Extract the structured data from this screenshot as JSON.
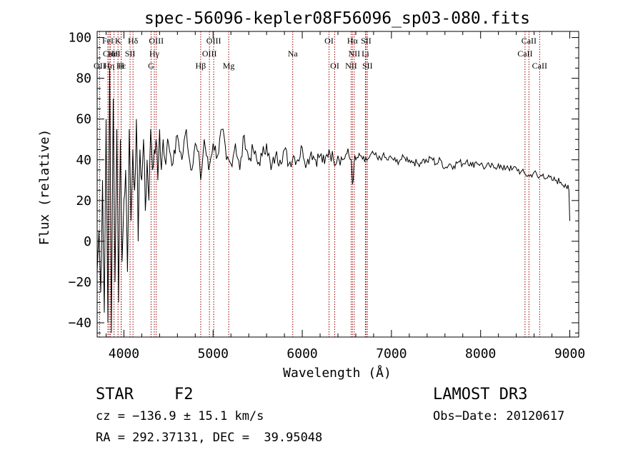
{
  "chart_data": {
    "type": "line",
    "title": "spec-56096-kepler08F56096_sp03-080.fits",
    "xlabel": "Wavelength (Å)",
    "ylabel": "Flux (relative)",
    "xlim": [
      3700,
      9100
    ],
    "ylim": [
      -47,
      103
    ],
    "x_ticks": [
      4000,
      5000,
      6000,
      7000,
      8000,
      9000
    ],
    "x_tick_labels": [
      "4000",
      "5000",
      "6000",
      "7000",
      "8000",
      "9000"
    ],
    "y_ticks": [
      -40,
      -20,
      0,
      20,
      40,
      60,
      80,
      100
    ],
    "y_tick_labels": [
      "−40",
      "−20",
      "0",
      "20",
      "40",
      "60",
      "80",
      "100"
    ],
    "series": [
      {
        "name": "flux",
        "x": [
          3700,
          3720,
          3740,
          3760,
          3780,
          3800,
          3820,
          3840,
          3860,
          3880,
          3900,
          3920,
          3940,
          3960,
          3980,
          4000,
          4020,
          4040,
          4060,
          4080,
          4100,
          4120,
          4140,
          4160,
          4180,
          4200,
          4220,
          4240,
          4260,
          4280,
          4300,
          4320,
          4340,
          4360,
          4380,
          4400,
          4420,
          4440,
          4460,
          4480,
          4500,
          4550,
          4600,
          4650,
          4700,
          4750,
          4800,
          4850,
          4861,
          4900,
          4950,
          5000,
          5050,
          5100,
          5150,
          5200,
          5250,
          5300,
          5350,
          5400,
          5450,
          5500,
          5550,
          5600,
          5650,
          5700,
          5750,
          5800,
          5850,
          5900,
          5950,
          6000,
          6050,
          6100,
          6150,
          6200,
          6250,
          6300,
          6350,
          6400,
          6450,
          6500,
          6550,
          6563,
          6580,
          6600,
          6650,
          6700,
          6750,
          6800,
          6850,
          6900,
          6950,
          7000,
          7050,
          7100,
          7150,
          7200,
          7250,
          7300,
          7350,
          7400,
          7450,
          7500,
          7550,
          7600,
          7650,
          7700,
          7750,
          7800,
          7850,
          7900,
          7950,
          8000,
          8050,
          8100,
          8150,
          8200,
          8250,
          8300,
          8350,
          8400,
          8450,
          8500,
          8550,
          8600,
          8650,
          8700,
          8750,
          8800,
          8850,
          8900,
          8950,
          8990,
          9000
        ],
        "values": [
          -15,
          5,
          -25,
          30,
          -35,
          60,
          -40,
          85,
          -45,
          70,
          -20,
          55,
          -30,
          50,
          -10,
          20,
          35,
          -15,
          55,
          10,
          45,
          25,
          60,
          0,
          45,
          30,
          50,
          15,
          40,
          20,
          55,
          35,
          45,
          50,
          30,
          55,
          35,
          50,
          40,
          45,
          48,
          38,
          52,
          40,
          55,
          35,
          48,
          38,
          30,
          50,
          35,
          48,
          42,
          55,
          40,
          38,
          48,
          35,
          52,
          40,
          45,
          38,
          42,
          48,
          35,
          42,
          40,
          45,
          38,
          42,
          40,
          46,
          38,
          44,
          40,
          42,
          38,
          45,
          40,
          42,
          40,
          43,
          40,
          28,
          38,
          40,
          42,
          39,
          41,
          43,
          40,
          42,
          40,
          41,
          39,
          40,
          41,
          40,
          39,
          38,
          40,
          39,
          41,
          38,
          40,
          36,
          38,
          37,
          39,
          38,
          40,
          37,
          39,
          38,
          36,
          37,
          36,
          38,
          35,
          37,
          35,
          36,
          34,
          33,
          32,
          34,
          31,
          33,
          31,
          30,
          30,
          29,
          28,
          25,
          10
        ]
      }
    ],
    "line_color": "#000000",
    "marker_color": "#990000",
    "line_markers": [
      {
        "label": "FeI",
        "wavelength": 3820,
        "row": 0
      },
      {
        "label": "OII",
        "wavelength": 3727,
        "row": 2
      },
      {
        "label": "CaII",
        "wavelength": 3849,
        "row": 1
      },
      {
        "label": "K",
        "wavelength": 3934,
        "row": 0
      },
      {
        "label": "H",
        "wavelength": 3969,
        "row": 2
      },
      {
        "label": "Hε",
        "wavelength": 3970,
        "row": 2
      },
      {
        "label": "HeI",
        "wavelength": 3889,
        "row": 1
      },
      {
        "label": "Hη",
        "wavelength": 3835,
        "row": 2
      },
      {
        "label": "SII",
        "wavelength": 4069,
        "row": 1
      },
      {
        "label": "Hδ",
        "wavelength": 4102,
        "row": 0
      },
      {
        "label": "OIII",
        "wavelength": 4363,
        "row": 0
      },
      {
        "label": "Hγ",
        "wavelength": 4341,
        "row": 1
      },
      {
        "label": "G",
        "wavelength": 4305,
        "row": 2
      },
      {
        "label": "Hβ",
        "wavelength": 4861,
        "row": 2
      },
      {
        "label": "OIII",
        "wavelength": 4959,
        "row": 1
      },
      {
        "label": "OIII",
        "wavelength": 5007,
        "row": 0
      },
      {
        "label": "Mg",
        "wavelength": 5175,
        "row": 2
      },
      {
        "label": "Na",
        "wavelength": 5893,
        "row": 1
      },
      {
        "label": "OI",
        "wavelength": 6300,
        "row": 0
      },
      {
        "label": "OI",
        "wavelength": 6364,
        "row": 2
      },
      {
        "label": "NII",
        "wavelength": 6548,
        "row": 2
      },
      {
        "label": "Hα",
        "wavelength": 6563,
        "row": 0
      },
      {
        "label": "NII",
        "wavelength": 6583,
        "row": 1
      },
      {
        "label": "SII",
        "wavelength": 6716,
        "row": 0
      },
      {
        "label": "Li",
        "wavelength": 6708,
        "row": 1
      },
      {
        "label": "SII",
        "wavelength": 6731,
        "row": 2
      },
      {
        "label": "CaII",
        "wavelength": 8498,
        "row": 1
      },
      {
        "label": "CaII",
        "wavelength": 8542,
        "row": 0
      },
      {
        "label": "CaII",
        "wavelength": 8662,
        "row": 2
      }
    ]
  },
  "info": {
    "class_label": "STAR",
    "subclass": "F2",
    "survey": "LAMOST DR3",
    "cz": "cz = −136.9 ± 15.1 km/s",
    "obs_date": "Obs−Date: 20120617",
    "coords": "RA = 292.37131, DEC =  39.95048"
  }
}
